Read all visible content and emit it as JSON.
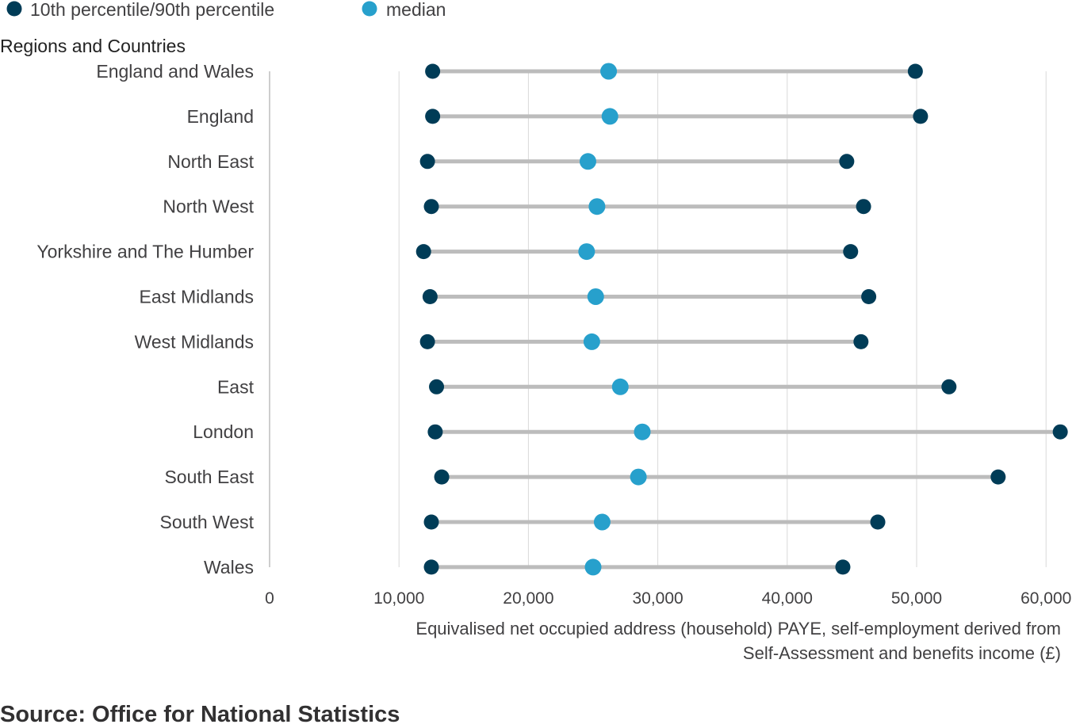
{
  "legend": {
    "p10_p90_label": "10th percentile/90th percentile",
    "median_label": "median"
  },
  "colors": {
    "percentile": "#003c57",
    "median": "#27a0cc",
    "range_line": "#bcbcbc",
    "grid": "#d9d9d9",
    "axis": "#bebebe"
  },
  "source": "Source: Office for National Statistics",
  "chart_data": {
    "type": "dot-range",
    "title": "",
    "ylabel": "Regions and Countries",
    "xlabel_lines": [
      "Equivalised net occupied address (household) PAYE, self-employment derived from",
      "Self-Assessment and benefits income (£)"
    ],
    "xlim": [
      0,
      61000
    ],
    "xticks": [
      0,
      10000,
      20000,
      30000,
      40000,
      50000,
      60000
    ],
    "xtick_labels": [
      "0",
      "10,000",
      "20,000",
      "30,000",
      "40,000",
      "50,000",
      "60,000"
    ],
    "grid": true,
    "legend_position": "top-left",
    "categories": [
      "England and Wales",
      "England",
      "North East",
      "North West",
      "Yorkshire and The Humber",
      "East Midlands",
      "West Midlands",
      "East",
      "London",
      "South East",
      "South West",
      "Wales"
    ],
    "series": [
      {
        "name": "10th percentile",
        "values": [
          12600,
          12600,
          12200,
          12500,
          11900,
          12400,
          12200,
          12900,
          12800,
          13300,
          12500,
          12500
        ]
      },
      {
        "name": "median",
        "values": [
          26200,
          26300,
          24600,
          25300,
          24500,
          25200,
          24900,
          27100,
          28800,
          28500,
          25700,
          25000
        ]
      },
      {
        "name": "90th percentile",
        "values": [
          49900,
          50300,
          44600,
          45900,
          44900,
          46300,
          45700,
          52500,
          61100,
          56300,
          47000,
          44300
        ]
      }
    ]
  }
}
